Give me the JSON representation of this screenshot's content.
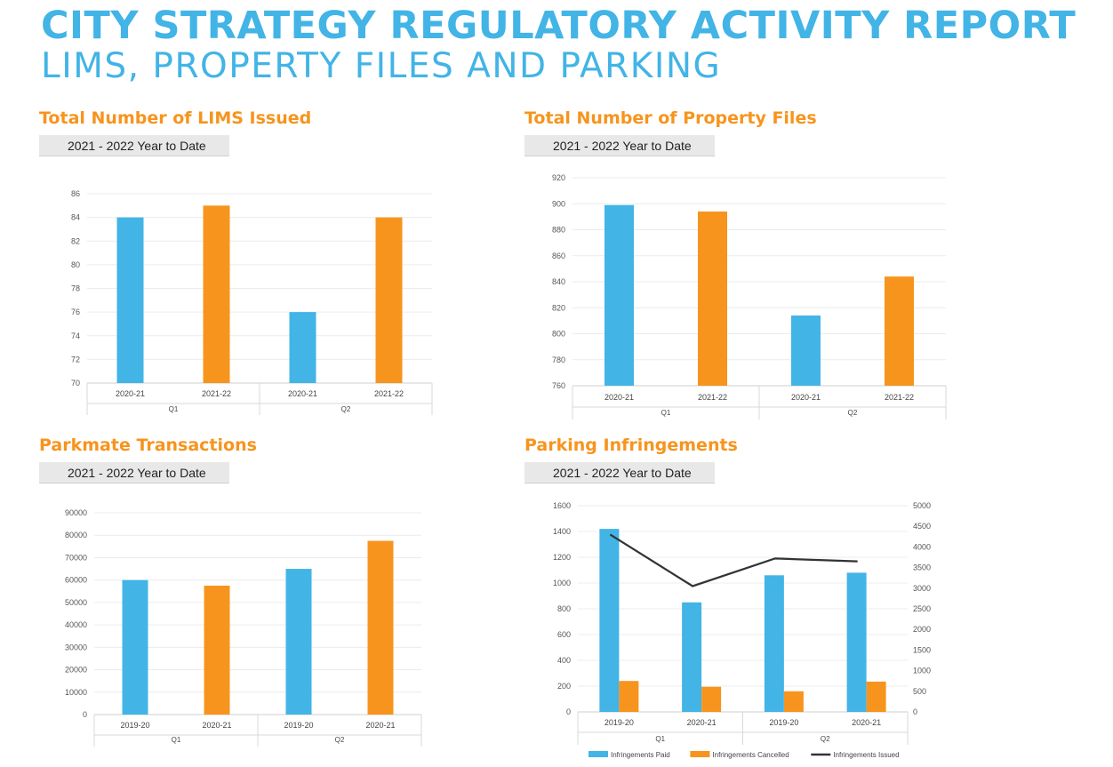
{
  "header": {
    "title": "CITY STRATEGY REGULATORY ACTIVITY REPORT",
    "subtitle": "LIMS, PROPERTY FILES AND PARKING"
  },
  "colors": {
    "blue": "#42b4e6",
    "orange": "#f7941d",
    "line": "#333333",
    "title": "#42b4e6",
    "panel_title": "#f7941d"
  },
  "panels": [
    {
      "title": "Total Number of LIMS Issued",
      "badge": "2021 - 2022 Year to Date"
    },
    {
      "title": "Total Number of Property Files",
      "badge": "2021 - 2022 Year to Date"
    },
    {
      "title": "Parkmate Transactions",
      "badge": "2021 - 2022 Year to Date"
    },
    {
      "title": "Parking Infringements",
      "badge": "2021 - 2022 Year to Date"
    }
  ],
  "chart_data": [
    {
      "type": "bar",
      "title": "Total Number of LIMS Issued",
      "groups": [
        "Q1",
        "Q2"
      ],
      "categories": [
        "2020-21",
        "2021-22",
        "2020-21",
        "2021-22"
      ],
      "values": [
        84,
        85,
        76,
        84
      ],
      "bar_colors": [
        "blue",
        "orange",
        "blue",
        "orange"
      ],
      "ylim": [
        70,
        86
      ],
      "yticks": [
        "70",
        "72",
        "74",
        "76",
        "78",
        "80",
        "82",
        "84",
        "86"
      ],
      "grid": true
    },
    {
      "type": "bar",
      "title": "Total Number of Property Files",
      "groups": [
        "Q1",
        "Q2"
      ],
      "categories": [
        "2020-21",
        "2021-22",
        "2020-21",
        "2021-22"
      ],
      "values": [
        899,
        894,
        814,
        844
      ],
      "bar_colors": [
        "blue",
        "orange",
        "blue",
        "orange"
      ],
      "ylim": [
        760,
        920
      ],
      "yticks": [
        "760",
        "780",
        "800",
        "820",
        "840",
        "860",
        "880",
        "900",
        "920"
      ],
      "grid": true
    },
    {
      "type": "bar",
      "title": "Parkmate Transactions",
      "groups": [
        "Q1",
        "Q2"
      ],
      "categories": [
        "2019-20",
        "2020-21",
        "2019-20",
        "2020-21"
      ],
      "values": [
        60000,
        57500,
        65000,
        77500
      ],
      "bar_colors": [
        "blue",
        "orange",
        "blue",
        "orange"
      ],
      "ylim": [
        0,
        90000
      ],
      "yticks": [
        "0",
        "10000",
        "20000",
        "30000",
        "40000",
        "50000",
        "60000",
        "70000",
        "80000",
        "90000"
      ],
      "grid": true
    },
    {
      "type": "bar",
      "title": "Parking Infringements",
      "groups": [
        "Q1",
        "Q2"
      ],
      "categories": [
        "2019-20",
        "2020-21",
        "2019-20",
        "2020-21"
      ],
      "series": [
        {
          "name": "Infringements Paid",
          "values": [
            1420,
            850,
            1060,
            1080
          ],
          "color": "blue",
          "axis": "left",
          "kind": "bar"
        },
        {
          "name": "Infringements Cancelled",
          "values": [
            240,
            195,
            160,
            235
          ],
          "color": "orange",
          "axis": "left",
          "kind": "bar"
        },
        {
          "name": "Infringements Issued",
          "values": [
            4300,
            3050,
            3720,
            3650
          ],
          "color": "line",
          "axis": "right",
          "kind": "line"
        }
      ],
      "ylim": [
        0,
        1600
      ],
      "yticks": [
        "0",
        "200",
        "400",
        "600",
        "800",
        "1000",
        "1200",
        "1400",
        "1600"
      ],
      "y2lim": [
        0,
        5000
      ],
      "y2ticks": [
        "0",
        "500",
        "1000",
        "1500",
        "2000",
        "2500",
        "3000",
        "3500",
        "4000",
        "4500",
        "5000"
      ],
      "legend_position": "bottom",
      "grid": true
    }
  ]
}
